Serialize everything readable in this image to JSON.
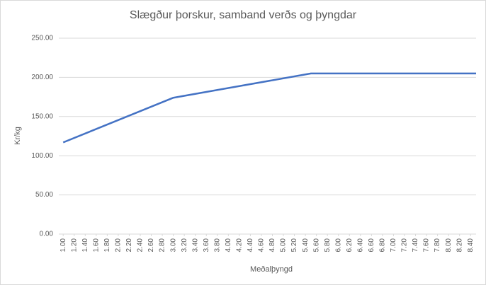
{
  "chart_data": {
    "type": "line",
    "title": "Slægður þorskur, samband verðs og þyngdar",
    "x_label": "Meðalþyngd",
    "y_label": "Kr/kg",
    "x": [
      1.0,
      3.0,
      5.5,
      8.5
    ],
    "series": [
      {
        "name": "Kr/kg",
        "color": "#4472c4",
        "values": [
          117,
          174,
          205,
          205
        ]
      }
    ],
    "xlim": [
      0.92,
      8.5
    ],
    "ylim": [
      0,
      250
    ],
    "yticks": [
      {
        "value": 0,
        "label": "0.00"
      },
      {
        "value": 50,
        "label": "50.00"
      },
      {
        "value": 100,
        "label": "100.00"
      },
      {
        "value": 150,
        "label": "150.00"
      },
      {
        "value": 200,
        "label": "200.00"
      },
      {
        "value": 250,
        "label": "250.00"
      }
    ],
    "xticks": [
      {
        "value": 1.0,
        "label": "1.00"
      },
      {
        "value": 1.2,
        "label": "1.20"
      },
      {
        "value": 1.4,
        "label": "1.40"
      },
      {
        "value": 1.6,
        "label": "1.60"
      },
      {
        "value": 1.8,
        "label": "1.80"
      },
      {
        "value": 2.0,
        "label": "2.00"
      },
      {
        "value": 2.2,
        "label": "2.20"
      },
      {
        "value": 2.4,
        "label": "2.40"
      },
      {
        "value": 2.6,
        "label": "2.60"
      },
      {
        "value": 2.8,
        "label": "2.80"
      },
      {
        "value": 3.0,
        "label": "3.00"
      },
      {
        "value": 3.2,
        "label": "3.20"
      },
      {
        "value": 3.4,
        "label": "3.40"
      },
      {
        "value": 3.6,
        "label": "3.60"
      },
      {
        "value": 3.8,
        "label": "3.80"
      },
      {
        "value": 4.0,
        "label": "4.00"
      },
      {
        "value": 4.2,
        "label": "4.20"
      },
      {
        "value": 4.4,
        "label": "4.40"
      },
      {
        "value": 4.6,
        "label": "4.60"
      },
      {
        "value": 4.8,
        "label": "4.80"
      },
      {
        "value": 5.0,
        "label": "5.00"
      },
      {
        "value": 5.2,
        "label": "5.20"
      },
      {
        "value": 5.4,
        "label": "5.40"
      },
      {
        "value": 5.6,
        "label": "5.60"
      },
      {
        "value": 5.8,
        "label": "5.80"
      },
      {
        "value": 6.0,
        "label": "6.00"
      },
      {
        "value": 6.2,
        "label": "6.20"
      },
      {
        "value": 6.4,
        "label": "6.40"
      },
      {
        "value": 6.6,
        "label": "6.60"
      },
      {
        "value": 6.8,
        "label": "6.80"
      },
      {
        "value": 7.0,
        "label": "7.00"
      },
      {
        "value": 7.2,
        "label": "7.20"
      },
      {
        "value": 7.4,
        "label": "7.40"
      },
      {
        "value": 7.6,
        "label": "7.60"
      },
      {
        "value": 7.8,
        "label": "7.80"
      },
      {
        "value": 8.0,
        "label": "8.00"
      },
      {
        "value": 8.2,
        "label": "8.20"
      },
      {
        "value": 8.4,
        "label": "8.40"
      }
    ],
    "grid": true
  }
}
